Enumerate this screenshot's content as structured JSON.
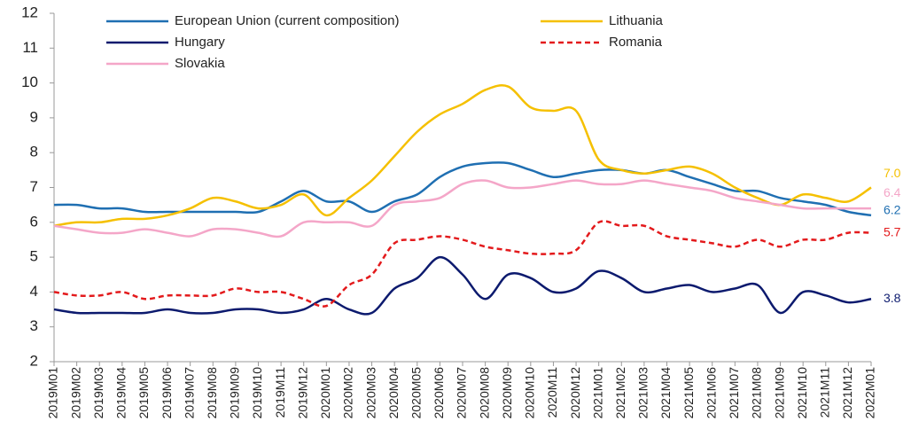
{
  "chart_data": {
    "type": "line",
    "categories": [
      "2019M01",
      "2019M02",
      "2019M03",
      "2019M04",
      "2019M05",
      "2019M06",
      "2019M07",
      "2019M08",
      "2019M09",
      "2019M10",
      "2019M11",
      "2019M12",
      "2020M01",
      "2020M02",
      "2020M03",
      "2020M04",
      "2020M05",
      "2020M06",
      "2020M07",
      "2020M08",
      "2020M09",
      "2020M10",
      "2020M11",
      "2020M12",
      "2021M01",
      "2021M02",
      "2021M03",
      "2021M04",
      "2021M05",
      "2021M06",
      "2021M07",
      "2021M08",
      "2021M09",
      "2021M10",
      "2021M11",
      "2021M12",
      "2022M01"
    ],
    "series": [
      {
        "name": "European Union (current composition)",
        "color": "#1f6fb2",
        "values": [
          6.5,
          6.5,
          6.4,
          6.4,
          6.3,
          6.3,
          6.3,
          6.3,
          6.3,
          6.3,
          6.6,
          6.9,
          6.6,
          6.6,
          6.3,
          6.6,
          6.8,
          7.3,
          7.6,
          7.7,
          7.7,
          7.5,
          7.3,
          7.4,
          7.5,
          7.5,
          7.4,
          7.5,
          7.3,
          7.1,
          6.9,
          6.9,
          6.7,
          6.6,
          6.5,
          6.3,
          6.2
        ],
        "value_labels": [
          null,
          null,
          null,
          null,
          null,
          null,
          null,
          null,
          null,
          null,
          null,
          null,
          null,
          null,
          null,
          null,
          null,
          null,
          null,
          null,
          null,
          null,
          null,
          null,
          null,
          null,
          null,
          null,
          null,
          null,
          null,
          null,
          null,
          null,
          null,
          null,
          "6.2"
        ]
      },
      {
        "name": "Lithuania",
        "color": "#f5c000",
        "values": [
          5.9,
          6.0,
          6.0,
          6.1,
          6.1,
          6.2,
          6.4,
          6.7,
          6.6,
          6.4,
          6.5,
          6.8,
          6.2,
          6.7,
          7.2,
          7.9,
          8.6,
          9.1,
          9.4,
          9.8,
          9.9,
          9.3,
          9.2,
          9.2,
          7.8,
          7.5,
          7.4,
          7.5,
          7.6,
          7.4,
          7.0,
          6.7,
          6.5,
          6.8,
          6.7,
          6.6,
          7.0
        ],
        "value_labels": [
          null,
          null,
          null,
          null,
          null,
          null,
          null,
          null,
          null,
          null,
          null,
          null,
          null,
          null,
          null,
          null,
          null,
          null,
          null,
          null,
          null,
          null,
          null,
          null,
          null,
          null,
          null,
          null,
          null,
          null,
          null,
          null,
          null,
          null,
          null,
          null,
          "7.0"
        ]
      },
      {
        "name": "Hungary",
        "color": "#0c1a6e",
        "values": [
          3.5,
          3.4,
          3.4,
          3.4,
          3.4,
          3.5,
          3.4,
          3.4,
          3.5,
          3.5,
          3.4,
          3.5,
          3.8,
          3.5,
          3.4,
          4.1,
          4.4,
          5.0,
          4.5,
          3.8,
          4.5,
          4.4,
          4.0,
          4.1,
          4.6,
          4.4,
          4.0,
          4.1,
          4.2,
          4.0,
          4.1,
          4.2,
          3.4,
          4.0,
          3.9,
          3.7,
          3.8
        ],
        "value_labels": [
          null,
          null,
          null,
          null,
          null,
          null,
          null,
          null,
          null,
          null,
          null,
          null,
          null,
          null,
          null,
          null,
          null,
          null,
          null,
          null,
          null,
          null,
          null,
          null,
          null,
          null,
          null,
          null,
          null,
          null,
          null,
          null,
          null,
          null,
          null,
          null,
          "3.8"
        ]
      },
      {
        "name": "Romania",
        "color": "#e31a1c",
        "dashed": true,
        "values": [
          4.0,
          3.9,
          3.9,
          4.0,
          3.8,
          3.9,
          3.9,
          3.9,
          4.1,
          4.0,
          4.0,
          3.8,
          3.6,
          4.2,
          4.5,
          5.4,
          5.5,
          5.6,
          5.5,
          5.3,
          5.2,
          5.1,
          5.1,
          5.2,
          6.0,
          5.9,
          5.9,
          5.6,
          5.5,
          5.4,
          5.3,
          5.5,
          5.3,
          5.5,
          5.5,
          5.7,
          5.7
        ],
        "value_labels": [
          null,
          null,
          null,
          null,
          null,
          null,
          null,
          null,
          null,
          null,
          null,
          null,
          null,
          null,
          null,
          null,
          null,
          null,
          null,
          null,
          null,
          null,
          null,
          null,
          null,
          null,
          null,
          null,
          null,
          null,
          null,
          null,
          null,
          null,
          null,
          null,
          "5.7"
        ]
      },
      {
        "name": "Slovakia",
        "color": "#f4a6c8",
        "values": [
          5.9,
          5.8,
          5.7,
          5.7,
          5.8,
          5.7,
          5.6,
          5.8,
          5.8,
          5.7,
          5.6,
          6.0,
          6.0,
          6.0,
          5.9,
          6.5,
          6.6,
          6.7,
          7.1,
          7.2,
          7.0,
          7.0,
          7.1,
          7.2,
          7.1,
          7.1,
          7.2,
          7.1,
          7.0,
          6.9,
          6.7,
          6.6,
          6.5,
          6.4,
          6.4,
          6.4,
          6.4
        ],
        "value_labels": [
          null,
          null,
          null,
          null,
          null,
          null,
          null,
          null,
          null,
          null,
          null,
          null,
          null,
          null,
          null,
          null,
          null,
          null,
          null,
          null,
          null,
          null,
          null,
          null,
          null,
          null,
          null,
          null,
          null,
          null,
          null,
          null,
          null,
          null,
          null,
          null,
          "6.4"
        ]
      }
    ],
    "ylim": [
      2,
      12
    ],
    "yticks": [
      2,
      3,
      4,
      5,
      6,
      7,
      8,
      9,
      10,
      11,
      12
    ]
  }
}
